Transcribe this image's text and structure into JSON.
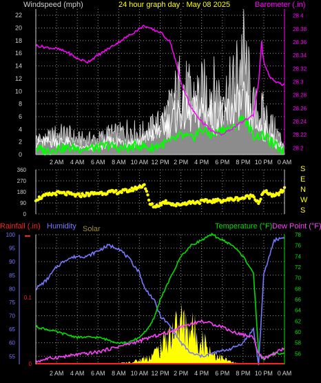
{
  "colors": {
    "background": "#000000",
    "grid": "#9a9a9a",
    "axis": "#cfcfcf",
    "wind_speed": "#ffffff",
    "wind_gust_fill": "#8c8c8c",
    "wind_avg": "#00ff00",
    "barometer": "#ff00ff",
    "wind_dir": "#ffff00",
    "rainfall": "#ff2020",
    "humidity": "#7878ff",
    "solar": "#ffff00",
    "temperature": "#00e000",
    "dew_point": "#ff40ff",
    "title": "#ffff00",
    "label_text": "#d0d0d0"
  },
  "header": {
    "wind_label": "Windspeed (mph)",
    "title": "24 hour graph day : May 08 2025",
    "baro_label": "Barometer (.in)"
  },
  "x_labels": [
    "2 AM",
    "4 AM",
    "6 AM",
    "8 AM",
    "10 AM",
    "12 PM",
    "2 PM",
    "4 PM",
    "6 PM",
    "8 PM",
    "10 PM",
    "0 AM"
  ],
  "legend": {
    "rainfall": "Rainfall (.in)",
    "humidity": "Humidity",
    "solar": "Solar",
    "temperature": "Temperature (°F)",
    "dew_point": "Dew Point (°F)"
  },
  "chart_data": [
    {
      "type": "line",
      "name": "wind-baro",
      "x_unit": "hours since midnight",
      "xlim": [
        0,
        24
      ],
      "y_left": {
        "label": "Windspeed (mph)",
        "lim": [
          0,
          23
        ],
        "ticks": [
          0,
          2,
          4,
          6,
          8,
          10,
          12,
          14,
          16,
          18,
          20,
          22
        ]
      },
      "y_right": {
        "label": "Barometer (.in)",
        "lim": [
          28.19,
          28.41
        ],
        "ticks": [
          "28.2",
          "28.22",
          "28.24",
          "28.26",
          "28.28",
          "28.3",
          "28.32",
          "28.34",
          "28.36",
          "28.38",
          "28.4"
        ]
      },
      "series": [
        {
          "name": "Barometer",
          "axis": "right",
          "x": [
            0,
            1,
            2,
            3,
            4,
            5,
            6,
            7,
            8,
            9,
            10,
            10.5,
            11,
            12,
            13,
            14,
            15,
            16,
            17,
            18,
            19,
            20,
            21,
            21.5,
            21.8,
            22,
            22.5,
            23,
            24
          ],
          "y": [
            28.355,
            28.352,
            28.35,
            28.345,
            28.335,
            28.33,
            28.34,
            28.35,
            28.36,
            28.37,
            28.38,
            28.385,
            28.38,
            28.375,
            28.36,
            28.3,
            28.26,
            28.24,
            28.225,
            28.22,
            28.23,
            28.24,
            28.25,
            28.3,
            28.36,
            28.33,
            28.31,
            28.3,
            28.295
          ]
        },
        {
          "name": "Wind gust",
          "axis": "left",
          "x": [
            0,
            1,
            2,
            3,
            4,
            5,
            6,
            7,
            8,
            9,
            10,
            11,
            12,
            13,
            14,
            15,
            16,
            17,
            18,
            19,
            20,
            21,
            22,
            23,
            24
          ],
          "y": [
            3,
            3,
            4,
            4,
            3,
            3,
            3,
            4,
            4,
            5,
            4,
            5,
            6,
            9,
            14,
            11,
            12,
            13,
            11,
            13,
            20,
            9,
            8,
            5,
            2
          ]
        },
        {
          "name": "Wind speed",
          "axis": "left",
          "x": [
            0,
            1,
            2,
            3,
            4,
            5,
            6,
            7,
            8,
            9,
            10,
            11,
            12,
            13,
            14,
            15,
            16,
            17,
            18,
            19,
            20,
            21,
            22,
            23,
            24
          ],
          "y": [
            2,
            2,
            2,
            2,
            1,
            1,
            1,
            2,
            2,
            2,
            2,
            3,
            4,
            5,
            7,
            6,
            7,
            6,
            6,
            7,
            8,
            5,
            4,
            2,
            1
          ]
        },
        {
          "name": "Wind average",
          "axis": "left",
          "x": [
            0,
            1,
            2,
            3,
            4,
            5,
            6,
            7,
            8,
            9,
            10,
            11,
            12,
            13,
            14,
            15,
            16,
            17,
            18,
            19,
            20,
            21,
            22,
            23,
            24
          ],
          "y": [
            1,
            0.5,
            1,
            1,
            1,
            1,
            1,
            1.5,
            1,
            1,
            1.5,
            1,
            1.5,
            2,
            3,
            2.5,
            4,
            3,
            4,
            4,
            6,
            3,
            3,
            1.5,
            0.5
          ]
        }
      ]
    },
    {
      "type": "scatter",
      "name": "wind-direction",
      "xlim": [
        0,
        24
      ],
      "y_left": {
        "lim": [
          0,
          360
        ],
        "ticks": [
          "0",
          "90",
          "180",
          "270",
          "360"
        ]
      },
      "y_right_labels": [
        "S",
        "E",
        "N",
        "W",
        "S"
      ],
      "series": [
        {
          "name": "Wind direction",
          "x": [
            0,
            1,
            2,
            3,
            4,
            5,
            6,
            7,
            8,
            9,
            10,
            10.5,
            11,
            11.5,
            12,
            12.5,
            13,
            13.5,
            14,
            14.5,
            15,
            16,
            17,
            18,
            19,
            20,
            20.5,
            21,
            21.5,
            22,
            22.5,
            23,
            24
          ],
          "y": [
            120,
            150,
            170,
            165,
            150,
            160,
            170,
            175,
            180,
            190,
            220,
            240,
            80,
            60,
            80,
            100,
            90,
            70,
            80,
            90,
            95,
            100,
            105,
            110,
            120,
            130,
            140,
            150,
            90,
            180,
            170,
            140,
            200
          ]
        }
      ]
    },
    {
      "type": "line",
      "name": "climate",
      "xlim": [
        0,
        24
      ],
      "y_left": {
        "label": "Humidity",
        "lim": [
          52,
          100
        ],
        "ticks": [
          "100",
          "95",
          "90",
          "85",
          "80",
          "75",
          "70",
          "65",
          "60",
          "55"
        ]
      },
      "y_right": {
        "label": "Temperature (°F)",
        "lim": [
          54,
          78
        ],
        "ticks": [
          "78",
          "76",
          "74",
          "72",
          "70",
          "68",
          "66",
          "64",
          "62",
          "60",
          "58",
          "56"
        ]
      },
      "rain_axis": {
        "ticks": [
          "0.1",
          "0"
        ]
      },
      "series": [
        {
          "name": "Humidity",
          "axis": "left",
          "x": [
            0,
            1,
            2,
            3,
            4,
            5,
            6,
            7,
            8,
            9,
            10,
            10.5,
            11,
            11.5,
            12,
            13,
            14,
            15,
            16,
            17,
            18,
            19,
            20,
            21,
            21.5,
            22,
            23,
            24
          ],
          "y": [
            80,
            83,
            88,
            91,
            92,
            92,
            94,
            96,
            95,
            91,
            86,
            80,
            78,
            75,
            70,
            66,
            60,
            56,
            55,
            56,
            57,
            58,
            60,
            65,
            52,
            85,
            98,
            99
          ]
        },
        {
          "name": "Temperature",
          "axis": "right",
          "x": [
            0,
            1,
            2,
            3,
            4,
            5,
            6,
            7,
            8,
            9,
            10,
            11,
            11.5,
            12,
            13,
            14,
            15,
            16,
            17,
            18,
            19,
            20,
            21,
            21.5,
            22,
            23,
            24
          ],
          "y": [
            61,
            60.5,
            60,
            59.5,
            59,
            59,
            59,
            58.5,
            58,
            58,
            59,
            61,
            63,
            66,
            70,
            74,
            76,
            77,
            78,
            77,
            76,
            74,
            71,
            56,
            55,
            56,
            56
          ]
        },
        {
          "name": "Dew Point",
          "axis": "right",
          "x": [
            0,
            1,
            2,
            3,
            4,
            5,
            6,
            7,
            8,
            9,
            10,
            11,
            12,
            13,
            14,
            15,
            16,
            17,
            18,
            19,
            20,
            21,
            21.5,
            22,
            23,
            24
          ],
          "y": [
            54.5,
            55,
            55.3,
            55.5,
            55.8,
            56,
            56.3,
            56.8,
            57.3,
            57.8,
            58.3,
            59,
            59.5,
            60,
            61,
            61.5,
            62,
            61.5,
            61,
            60,
            59.5,
            59,
            56,
            55,
            56,
            57
          ]
        },
        {
          "name": "Solar",
          "axis": "left",
          "x": [
            6,
            8,
            9,
            10,
            11,
            12,
            13,
            14,
            15,
            16,
            17,
            18,
            19,
            20
          ],
          "y": [
            52,
            52.5,
            53,
            54,
            56,
            60,
            68,
            73,
            70,
            65,
            58,
            55,
            53,
            52
          ]
        },
        {
          "name": "Rainfall",
          "axis": "rain",
          "x": [
            0,
            24
          ],
          "y": [
            0,
            0
          ]
        }
      ]
    }
  ]
}
